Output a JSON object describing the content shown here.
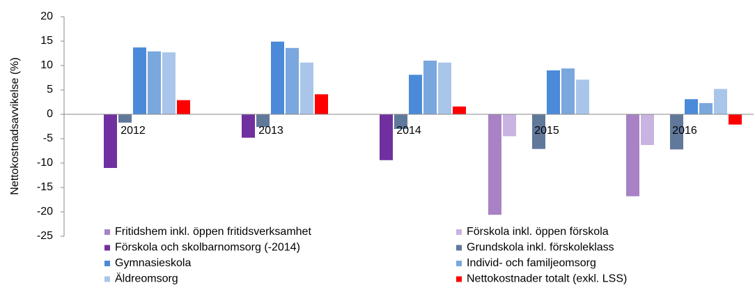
{
  "chart_data": {
    "type": "bar",
    "ylabel": "Nettokostnadsavvikelse (%)",
    "categories": [
      "2012",
      "2013",
      "2014",
      "2015",
      "2016"
    ],
    "series": [
      {
        "name": "Fritidshem inkl. öppen fritidsverksamhet",
        "color": "#a882c4",
        "values": [
          null,
          null,
          null,
          -20.6,
          -16.8
        ]
      },
      {
        "name": "Förskola inkl. öppen förskola",
        "color": "#c9b3e0",
        "values": [
          null,
          null,
          null,
          -4.5,
          -6.3
        ]
      },
      {
        "name": "Förskola och skolbarnomsorg (-2014)",
        "color": "#7030a0",
        "values": [
          -11.0,
          -4.8,
          -9.4,
          null,
          null
        ]
      },
      {
        "name": "Grundskola inkl. förskoleklass",
        "color": "#60789a",
        "values": [
          -1.7,
          -2.6,
          -3.0,
          -7.1,
          -7.2
        ]
      },
      {
        "name": "Gymnasieskola",
        "color": "#4a8ad8",
        "values": [
          13.7,
          14.9,
          8.1,
          9.0,
          3.1
        ]
      },
      {
        "name": "Individ- och familjeomsorg",
        "color": "#7aa7dd",
        "values": [
          12.9,
          13.6,
          11.0,
          9.4,
          2.3
        ]
      },
      {
        "name": "Äldreomsorg",
        "color": "#a9c6ea",
        "values": [
          12.7,
          10.6,
          10.6,
          7.1,
          5.2
        ]
      },
      {
        "name": "Nettokostnader totalt (exkl. LSS)",
        "color": "#ff0000",
        "values": [
          2.9,
          4.1,
          1.6,
          null,
          -2.1
        ]
      }
    ],
    "ylim": [
      -25,
      20
    ],
    "yticks": [
      -25,
      -20,
      -15,
      -10,
      -5,
      0,
      5,
      10,
      15,
      20
    ],
    "legend": "bottom"
  }
}
